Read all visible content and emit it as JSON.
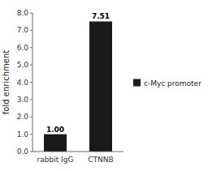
{
  "chart_data": {
    "type": "bar",
    "ylabel": "fold enrichment",
    "categories": [
      "rabbit IgG",
      "CTNNB"
    ],
    "series": [
      {
        "name": "c-Myc promoter",
        "color": "#1a1a1a",
        "values": [
          1.0,
          7.51
        ],
        "value_labels": [
          "1.00",
          "7.51"
        ]
      }
    ],
    "data_labels": true,
    "ylim": [
      0,
      8.0
    ],
    "yticks": [
      {
        "value": 0.0,
        "label": "0.0"
      },
      {
        "value": 1.0,
        "label": "1.0"
      },
      {
        "value": 2.0,
        "label": "2.0"
      },
      {
        "value": 3.0,
        "label": "3.0"
      },
      {
        "value": 4.0,
        "label": "4.0"
      },
      {
        "value": 5.0,
        "label": "5.0"
      },
      {
        "value": 6.0,
        "label": "6.0"
      },
      {
        "value": 7.0,
        "label": "7.0"
      },
      {
        "value": 8.0,
        "label": "8.0"
      }
    ],
    "grid": false,
    "legend": "right"
  }
}
